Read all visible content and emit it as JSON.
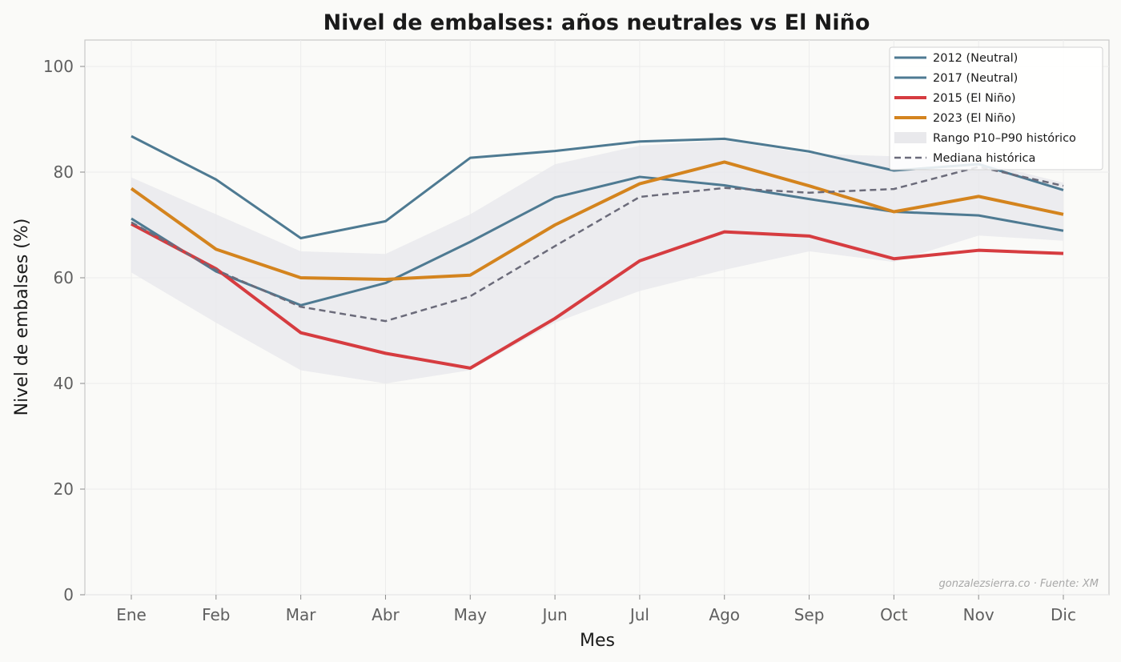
{
  "chart_data": {
    "type": "line",
    "title": "Nivel de embalses: años neutrales vs El Niño",
    "xlabel": "Mes",
    "ylabel": "Nivel de embalses (%)",
    "ylim": [
      0,
      105
    ],
    "yticks": [
      0,
      20,
      40,
      60,
      80,
      100
    ],
    "grid": true,
    "legend_position": "top-right",
    "categories": [
      "Ene",
      "Feb",
      "Mar",
      "Abr",
      "May",
      "Jun",
      "Jul",
      "Ago",
      "Sep",
      "Oct",
      "Nov",
      "Dic"
    ],
    "band": {
      "name": "Rango P10–P90 histórico",
      "color": "#e9e9ec",
      "low": [
        61,
        51.5,
        42.5,
        40,
        42.5,
        51.5,
        57.5,
        61.5,
        65,
        63,
        68,
        67
      ],
      "high": [
        79,
        72,
        65,
        64.5,
        72,
        81.5,
        85,
        86,
        83.5,
        83,
        82,
        78
      ]
    },
    "series": [
      {
        "name": "2012 (Neutral)",
        "color": "#4e7a92",
        "width": 3,
        "dash": "",
        "values": [
          86.8,
          78.6,
          67.5,
          70.7,
          82.7,
          84,
          85.8,
          86.3,
          83.9,
          80.3,
          81.5,
          76.6
        ]
      },
      {
        "name": "2017 (Neutral)",
        "color": "#4e7a92",
        "width": 3,
        "dash": "",
        "values": [
          71.2,
          61.2,
          54.8,
          59,
          66.8,
          75.2,
          79.1,
          77.5,
          74.9,
          72.5,
          71.8,
          68.9
        ]
      },
      {
        "name": "2015 (El Niño)",
        "color": "#d63c40",
        "width": 4,
        "dash": "",
        "values": [
          70.2,
          61.7,
          49.6,
          45.7,
          42.9,
          52.3,
          63.2,
          68.7,
          67.9,
          63.6,
          65.2,
          64.6
        ]
      },
      {
        "name": "2023 (El Niño)",
        "color": "#d4841e",
        "width": 4,
        "dash": "",
        "values": [
          76.9,
          65.4,
          60,
          59.7,
          60.5,
          70,
          77.8,
          81.9,
          77.4,
          72.5,
          75.4,
          72
        ]
      },
      {
        "name": "Mediana histórica",
        "color": "#6b6b7a",
        "width": 2.5,
        "dash": "8,5",
        "values": [
          70.5,
          61.5,
          54.5,
          51.8,
          56.5,
          66,
          75.3,
          77,
          76.1,
          76.8,
          81,
          77.4
        ]
      }
    ],
    "legend_order": [
      "2012 (Neutral)",
      "2017 (Neutral)",
      "2015 (El Niño)",
      "2023 (El Niño)",
      "Rango P10–P90 histórico",
      "Mediana histórica"
    ],
    "credit": "gonzalezsierra.co · Fuente: XM"
  }
}
